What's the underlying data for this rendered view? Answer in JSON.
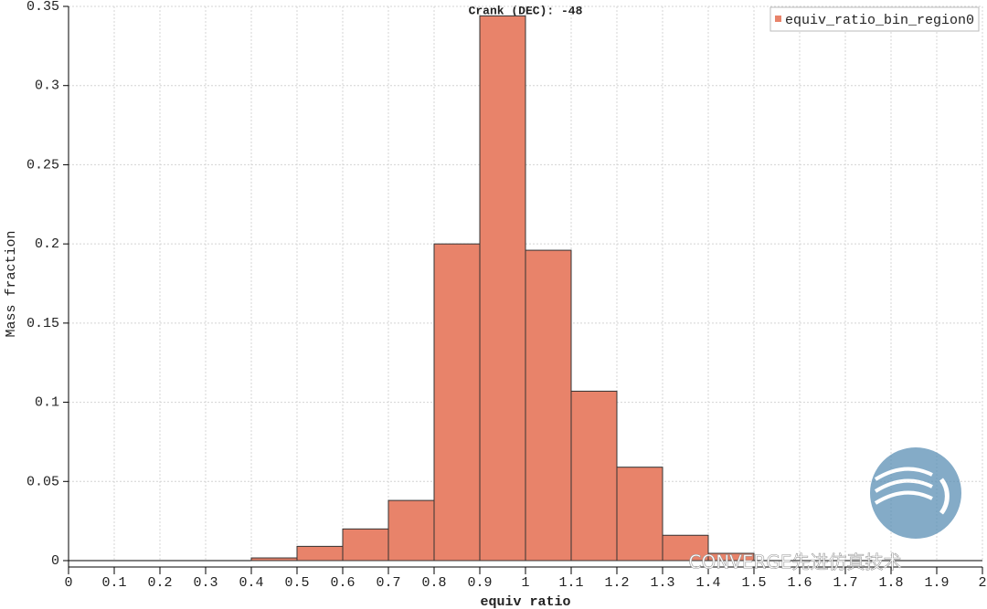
{
  "chart_data": {
    "type": "histogram",
    "title": "Crank (DEC): -48",
    "x_label": "equiv ratio",
    "y_label": "Mass fraction",
    "bins": [
      0,
      0.1,
      0.2,
      0.3,
      0.4,
      0.5,
      0.6,
      0.7,
      0.8,
      0.9,
      1,
      1.1,
      1.2,
      1.3,
      1.4,
      1.5,
      1.6,
      1.7,
      1.8,
      1.9,
      2
    ],
    "series": [
      {
        "name": "equiv_ratio_bin_region0",
        "color": "#e8836a",
        "values": [
          0,
          0,
          0,
          0,
          0.0017,
          0.009,
          0.02,
          0.038,
          0.2,
          0.344,
          0.196,
          0.107,
          0.059,
          0.016,
          0.0046,
          0,
          0,
          0,
          0,
          0
        ]
      }
    ],
    "xlim": [
      0,
      2
    ],
    "xticks": [
      0,
      0.1,
      0.2,
      0.3,
      0.4,
      0.5,
      0.6,
      0.7,
      0.8,
      0.9,
      1,
      1.1,
      1.2,
      1.3,
      1.4,
      1.5,
      1.6,
      1.7,
      1.8,
      1.9,
      2
    ],
    "ylim": [
      0,
      0.35
    ],
    "yticks": [
      0,
      0.05,
      0.1,
      0.15,
      0.2,
      0.25,
      0.3,
      0.35
    ],
    "grid": true,
    "legend": "upper right",
    "watermark": "CONVERGE先进仿真技术"
  }
}
